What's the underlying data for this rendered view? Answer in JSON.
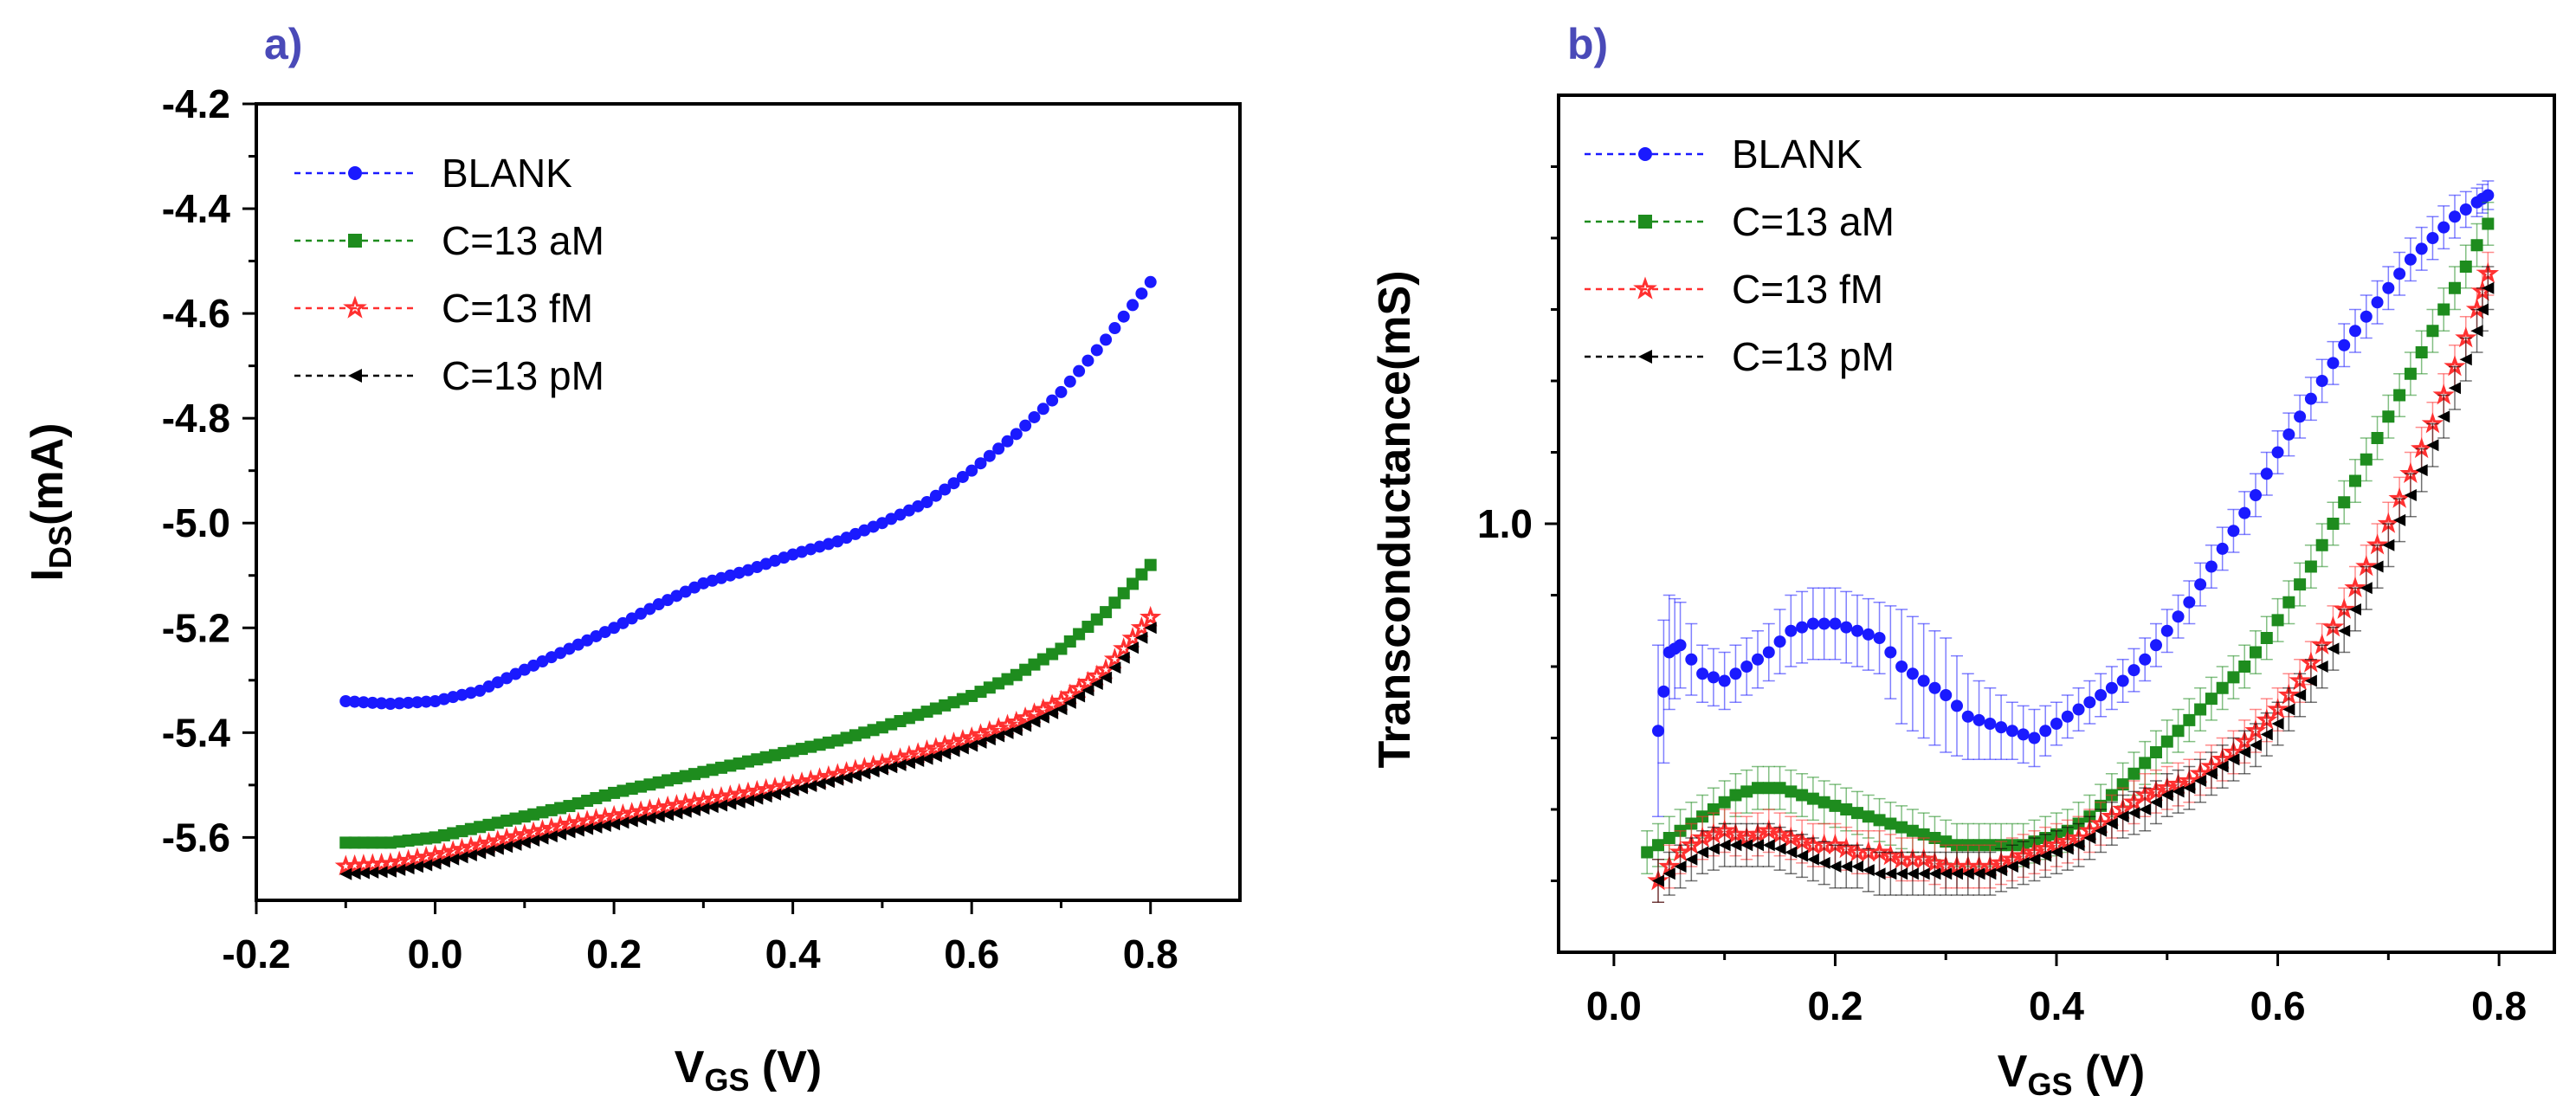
{
  "chart_data": [
    {
      "panel_label": "a)",
      "type": "scatter",
      "xlabel": "V",
      "xlabel_sub": "GS",
      "xlabel_unit": " (V)",
      "ylabel": "I",
      "ylabel_sub": "DS",
      "ylabel_unit": "(mA)",
      "xlim": [
        -0.2,
        0.9
      ],
      "ylim": [
        -5.72,
        -4.2
      ],
      "x_ticks": [
        -0.2,
        0.0,
        0.2,
        0.4,
        0.6,
        0.8
      ],
      "x_tick_labels": [
        "-0.2",
        "0.0",
        "0.2",
        "0.4",
        "0.6",
        "0.8"
      ],
      "y_ticks": [
        -4.2,
        -4.4,
        -4.6,
        -4.8,
        -5.0,
        -5.2,
        -5.4,
        -5.6
      ],
      "y_tick_labels": [
        "-4.2",
        "-4.4",
        "-4.6",
        "-4.8",
        "-5.0",
        "-5.2",
        "-5.4",
        "-5.6"
      ],
      "legend_position": "top-left",
      "series": [
        {
          "name": "BLANK",
          "color": "#1a1aff",
          "marker": "circle",
          "x": [
            -0.1,
            -0.05,
            0.0,
            0.05,
            0.1,
            0.15,
            0.2,
            0.25,
            0.3,
            0.35,
            0.4,
            0.45,
            0.5,
            0.55,
            0.6,
            0.65,
            0.7,
            0.75,
            0.8
          ],
          "y": [
            -5.34,
            -5.345,
            -5.34,
            -5.32,
            -5.28,
            -5.24,
            -5.2,
            -5.155,
            -5.115,
            -5.09,
            -5.06,
            -5.035,
            -5.0,
            -4.96,
            -4.9,
            -4.83,
            -4.75,
            -4.65,
            -4.54
          ]
        },
        {
          "name": "C=13 aM",
          "color": "#1e8c1e",
          "marker": "square",
          "x": [
            -0.1,
            -0.05,
            0.0,
            0.05,
            0.1,
            0.15,
            0.2,
            0.25,
            0.3,
            0.35,
            0.4,
            0.45,
            0.5,
            0.55,
            0.6,
            0.65,
            0.7,
            0.75,
            0.8
          ],
          "y": [
            -5.61,
            -5.61,
            -5.6,
            -5.58,
            -5.56,
            -5.54,
            -5.515,
            -5.495,
            -5.475,
            -5.455,
            -5.435,
            -5.415,
            -5.39,
            -5.36,
            -5.33,
            -5.29,
            -5.24,
            -5.17,
            -5.08
          ]
        },
        {
          "name": "C=13 fM",
          "color": "#ff3030",
          "marker": "star",
          "x": [
            -0.1,
            -0.05,
            0.0,
            0.05,
            0.1,
            0.15,
            0.2,
            0.25,
            0.3,
            0.35,
            0.4,
            0.45,
            0.5,
            0.55,
            0.6,
            0.65,
            0.7,
            0.75,
            0.8
          ],
          "y": [
            -5.655,
            -5.65,
            -5.635,
            -5.615,
            -5.595,
            -5.575,
            -5.56,
            -5.545,
            -5.53,
            -5.515,
            -5.5,
            -5.48,
            -5.46,
            -5.435,
            -5.41,
            -5.38,
            -5.34,
            -5.28,
            -5.18
          ]
        },
        {
          "name": "C=13 pM",
          "color": "#000000",
          "marker": "triangle-left",
          "x": [
            -0.1,
            -0.05,
            0.0,
            0.05,
            0.1,
            0.15,
            0.2,
            0.25,
            0.3,
            0.35,
            0.4,
            0.45,
            0.5,
            0.55,
            0.6,
            0.65,
            0.7,
            0.75,
            0.8
          ],
          "y": [
            -5.67,
            -5.665,
            -5.65,
            -5.63,
            -5.61,
            -5.59,
            -5.575,
            -5.56,
            -5.545,
            -5.53,
            -5.51,
            -5.49,
            -5.47,
            -5.45,
            -5.425,
            -5.395,
            -5.355,
            -5.295,
            -5.2
          ]
        }
      ]
    },
    {
      "panel_label": "b)",
      "type": "scatter",
      "xlabel": "V",
      "xlabel_sub": "GS",
      "xlabel_unit": " (V)",
      "ylabel": "Transconductance(mS)",
      "xlim": [
        -0.05,
        0.85
      ],
      "ylim": [
        0.4,
        1.6
      ],
      "x_ticks": [
        0.0,
        0.2,
        0.4,
        0.6,
        0.8
      ],
      "x_tick_labels": [
        "0.0",
        "0.2",
        "0.4",
        "0.6",
        "0.8"
      ],
      "y_ticks": [
        1.0
      ],
      "y_tick_labels": [
        "1.0"
      ],
      "legend_position": "top-left",
      "error_bars": true,
      "series": [
        {
          "name": "BLANK",
          "color": "#1a1aff",
          "marker": "circle",
          "x": [
            0.04,
            0.05,
            0.06,
            0.08,
            0.1,
            0.12,
            0.14,
            0.16,
            0.18,
            0.2,
            0.22,
            0.24,
            0.26,
            0.28,
            0.3,
            0.32,
            0.34,
            0.36,
            0.38,
            0.4,
            0.42,
            0.44,
            0.46,
            0.48,
            0.5,
            0.52,
            0.54,
            0.56,
            0.58,
            0.6,
            0.62,
            0.64,
            0.66,
            0.68,
            0.7,
            0.72,
            0.74,
            0.76,
            0.78,
            0.79
          ],
          "y": [
            0.71,
            0.82,
            0.83,
            0.79,
            0.78,
            0.8,
            0.82,
            0.85,
            0.86,
            0.86,
            0.85,
            0.84,
            0.8,
            0.78,
            0.76,
            0.73,
            0.72,
            0.71,
            0.7,
            0.72,
            0.74,
            0.76,
            0.78,
            0.81,
            0.85,
            0.89,
            0.94,
            0.99,
            1.04,
            1.1,
            1.15,
            1.2,
            1.25,
            1.29,
            1.33,
            1.37,
            1.4,
            1.43,
            1.45,
            1.46
          ],
          "err": [
            0.12,
            0.08,
            0.06,
            0.04,
            0.04,
            0.04,
            0.04,
            0.05,
            0.05,
            0.05,
            0.05,
            0.05,
            0.08,
            0.08,
            0.08,
            0.06,
            0.05,
            0.04,
            0.04,
            0.03,
            0.03,
            0.03,
            0.03,
            0.03,
            0.03,
            0.03,
            0.03,
            0.03,
            0.03,
            0.03,
            0.03,
            0.03,
            0.03,
            0.03,
            0.03,
            0.03,
            0.03,
            0.03,
            0.02,
            0.02
          ]
        },
        {
          "name": "C=13 aM",
          "color": "#1e8c1e",
          "marker": "square",
          "x": [
            0.03,
            0.05,
            0.07,
            0.09,
            0.11,
            0.13,
            0.15,
            0.17,
            0.19,
            0.21,
            0.23,
            0.25,
            0.27,
            0.29,
            0.31,
            0.33,
            0.35,
            0.37,
            0.39,
            0.41,
            0.43,
            0.45,
            0.47,
            0.49,
            0.51,
            0.53,
            0.55,
            0.57,
            0.59,
            0.61,
            0.63,
            0.65,
            0.67,
            0.69,
            0.71,
            0.73,
            0.75,
            0.77,
            0.79
          ],
          "y": [
            0.54,
            0.56,
            0.58,
            0.6,
            0.62,
            0.63,
            0.63,
            0.62,
            0.61,
            0.6,
            0.59,
            0.58,
            0.57,
            0.56,
            0.55,
            0.55,
            0.55,
            0.55,
            0.56,
            0.57,
            0.59,
            0.62,
            0.65,
            0.68,
            0.71,
            0.74,
            0.77,
            0.8,
            0.84,
            0.89,
            0.94,
            1.0,
            1.06,
            1.12,
            1.18,
            1.24,
            1.3,
            1.36,
            1.42
          ],
          "err": [
            0.03,
            0.03,
            0.03,
            0.03,
            0.03,
            0.03,
            0.03,
            0.03,
            0.03,
            0.03,
            0.03,
            0.03,
            0.03,
            0.03,
            0.03,
            0.03,
            0.03,
            0.03,
            0.03,
            0.03,
            0.03,
            0.03,
            0.03,
            0.03,
            0.03,
            0.03,
            0.03,
            0.03,
            0.03,
            0.03,
            0.03,
            0.03,
            0.03,
            0.03,
            0.03,
            0.03,
            0.03,
            0.03,
            0.03
          ]
        },
        {
          "name": "C=13 fM",
          "color": "#ff3030",
          "marker": "star",
          "x": [
            0.04,
            0.06,
            0.08,
            0.1,
            0.12,
            0.14,
            0.16,
            0.18,
            0.2,
            0.22,
            0.24,
            0.26,
            0.28,
            0.3,
            0.32,
            0.34,
            0.36,
            0.38,
            0.4,
            0.42,
            0.44,
            0.46,
            0.48,
            0.5,
            0.52,
            0.54,
            0.56,
            0.58,
            0.6,
            0.62,
            0.64,
            0.66,
            0.68,
            0.7,
            0.72,
            0.74,
            0.76,
            0.78,
            0.79
          ],
          "y": [
            0.5,
            0.54,
            0.56,
            0.57,
            0.56,
            0.57,
            0.56,
            0.55,
            0.55,
            0.54,
            0.54,
            0.53,
            0.53,
            0.52,
            0.52,
            0.52,
            0.53,
            0.54,
            0.55,
            0.56,
            0.58,
            0.6,
            0.62,
            0.63,
            0.64,
            0.66,
            0.68,
            0.71,
            0.74,
            0.78,
            0.83,
            0.88,
            0.94,
            1.0,
            1.07,
            1.14,
            1.22,
            1.3,
            1.35
          ],
          "err": [
            0.03,
            0.03,
            0.03,
            0.03,
            0.03,
            0.03,
            0.03,
            0.03,
            0.03,
            0.03,
            0.03,
            0.03,
            0.03,
            0.03,
            0.03,
            0.03,
            0.03,
            0.03,
            0.03,
            0.03,
            0.03,
            0.03,
            0.03,
            0.03,
            0.03,
            0.03,
            0.03,
            0.03,
            0.03,
            0.03,
            0.03,
            0.03,
            0.03,
            0.03,
            0.03,
            0.03,
            0.03,
            0.03,
            0.03
          ]
        },
        {
          "name": "C=13 pM",
          "color": "#000000",
          "marker": "triangle-left",
          "x": [
            0.04,
            0.06,
            0.08,
            0.1,
            0.12,
            0.14,
            0.16,
            0.18,
            0.2,
            0.22,
            0.24,
            0.26,
            0.28,
            0.3,
            0.32,
            0.34,
            0.36,
            0.38,
            0.4,
            0.42,
            0.44,
            0.46,
            0.48,
            0.5,
            0.52,
            0.54,
            0.56,
            0.58,
            0.6,
            0.62,
            0.64,
            0.66,
            0.68,
            0.7,
            0.72,
            0.74,
            0.76,
            0.78,
            0.79
          ],
          "y": [
            0.5,
            0.52,
            0.54,
            0.55,
            0.55,
            0.55,
            0.54,
            0.53,
            0.52,
            0.52,
            0.51,
            0.51,
            0.51,
            0.51,
            0.51,
            0.51,
            0.52,
            0.53,
            0.54,
            0.55,
            0.57,
            0.59,
            0.6,
            0.62,
            0.63,
            0.65,
            0.67,
            0.69,
            0.72,
            0.76,
            0.8,
            0.85,
            0.91,
            0.97,
            1.04,
            1.11,
            1.19,
            1.27,
            1.33
          ],
          "err": [
            0.03,
            0.03,
            0.03,
            0.03,
            0.03,
            0.03,
            0.03,
            0.03,
            0.03,
            0.03,
            0.03,
            0.03,
            0.03,
            0.03,
            0.03,
            0.03,
            0.03,
            0.03,
            0.03,
            0.03,
            0.03,
            0.03,
            0.03,
            0.03,
            0.03,
            0.03,
            0.03,
            0.03,
            0.03,
            0.03,
            0.03,
            0.03,
            0.03,
            0.03,
            0.03,
            0.03,
            0.03,
            0.03,
            0.03
          ]
        }
      ]
    }
  ]
}
